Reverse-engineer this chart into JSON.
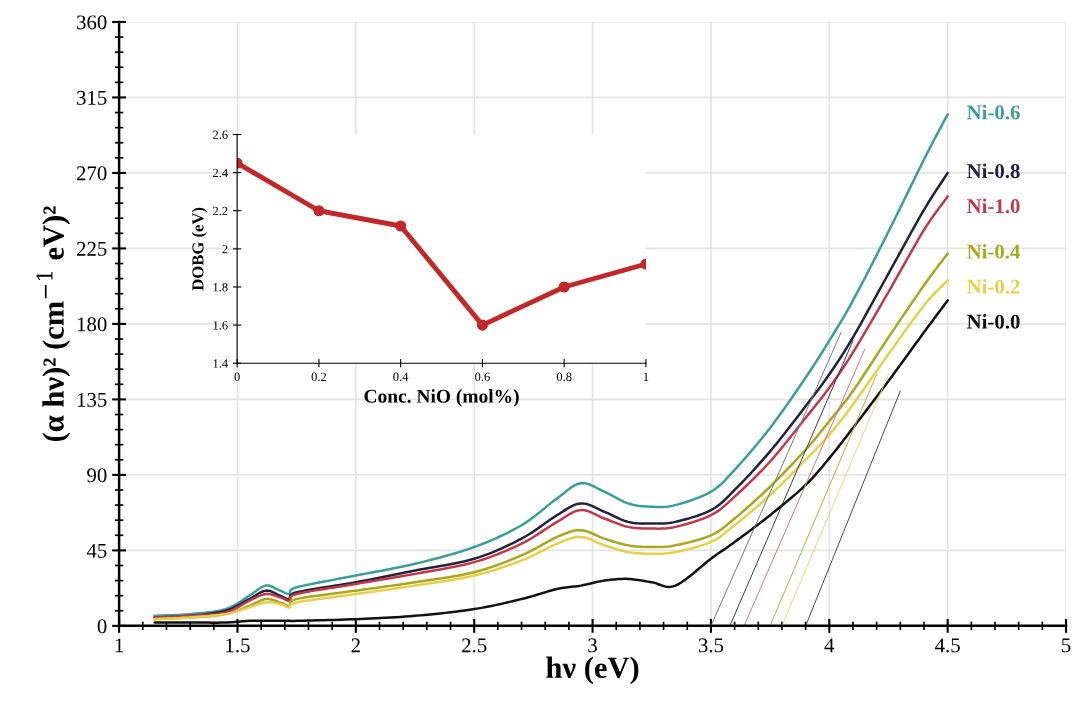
{
  "chart_data": [
    {
      "type": "line",
      "xlabel": "hν (eV)",
      "ylabel": "(α hν)² (cm$^{−1}$ eV)²",
      "xlim": [
        1,
        5
      ],
      "xticks": [
        1,
        1.5,
        2,
        2.5,
        3,
        3.5,
        4,
        4.5,
        5
      ],
      "ylim": [
        0,
        360
      ],
      "yticks": [
        0,
        45,
        90,
        135,
        180,
        225,
        270,
        315,
        360
      ],
      "grid": true,
      "legend": false,
      "marker": "none",
      "line_style": "solid",
      "x": [
        1.15,
        1.3,
        1.45,
        1.55,
        1.62,
        1.68,
        1.72,
        1.75,
        2.0,
        2.25,
        2.5,
        2.7,
        2.85,
        2.95,
        3.05,
        3.15,
        3.25,
        3.35,
        3.5,
        3.6,
        3.75,
        3.9,
        4.0,
        4.1,
        4.25,
        4.4,
        4.5
      ],
      "series": [
        {
          "name": "Ni-0.6",
          "color": "#3a9e9a",
          "values": [
            6,
            7,
            10,
            18,
            24,
            21,
            19,
            23,
            30,
            37,
            47,
            60,
            76,
            85,
            80,
            73,
            71,
            72,
            80,
            93,
            118,
            148,
            170,
            194,
            235,
            278,
            305
          ]
        },
        {
          "name": "Ni-0.8",
          "color": "#22223f",
          "values": [
            5,
            6,
            9,
            16,
            21,
            18,
            16,
            20,
            26,
            33,
            40,
            52,
            66,
            73,
            68,
            62,
            61,
            62,
            69,
            81,
            104,
            131,
            150,
            172,
            210,
            248,
            270
          ]
        },
        {
          "name": "Ni-1.0",
          "color": "#c0394b",
          "values": [
            5,
            6,
            8,
            15,
            19,
            17,
            15,
            19,
            25,
            31,
            38,
            49,
            62,
            69,
            64,
            59,
            58,
            59,
            66,
            77,
            98,
            124,
            142,
            163,
            199,
            236,
            256
          ]
        },
        {
          "name": "Ni-0.4",
          "color": "#a8a820",
          "values": [
            4,
            5,
            7,
            12,
            16,
            14,
            12,
            16,
            21,
            26,
            32,
            42,
            53,
            57,
            52,
            48,
            47,
            48,
            54,
            64,
            83,
            105,
            122,
            140,
            172,
            203,
            222
          ]
        },
        {
          "name": "Ni-0.2",
          "color": "#e8cf4a",
          "values": [
            4,
            5,
            7,
            11,
            14,
            13,
            11,
            14,
            19,
            24,
            30,
            39,
            49,
            53,
            48,
            44,
            43,
            44,
            50,
            60,
            78,
            99,
            114,
            132,
            162,
            191,
            206
          ]
        },
        {
          "name": "Ni-0.0",
          "color": "#111111",
          "values": [
            2,
            2,
            2,
            3,
            3,
            3,
            3,
            3,
            4,
            6,
            10,
            16,
            22,
            24,
            27,
            28,
            26,
            24,
            40,
            50,
            66,
            84,
            100,
            118,
            146,
            175,
            194
          ]
        },
        {
          "type": "line",
          "color": "#777777",
          "x": [
            3.5,
            4.05
          ],
          "values": [
            0,
            175
          ]
        },
        {
          "type": "line",
          "color": "#333344",
          "x": [
            3.58,
            4.1
          ],
          "values": [
            0,
            170
          ]
        },
        {
          "type": "line",
          "color": "#d07080",
          "x": [
            3.64,
            4.15
          ],
          "values": [
            0,
            165
          ]
        },
        {
          "type": "line",
          "color": "#b0b040",
          "x": [
            3.75,
            4.2
          ],
          "values": [
            0,
            150
          ]
        },
        {
          "type": "line",
          "color": "#e8d870",
          "x": [
            3.8,
            4.25
          ],
          "values": [
            0,
            150
          ]
        },
        {
          "type": "line",
          "color": "#444444",
          "x": [
            3.9,
            4.3
          ],
          "values": [
            0,
            140
          ]
        }
      ]
    },
    {
      "type": "line",
      "xlabel": "Conc. NiO (mol%)",
      "ylabel": "DOBG (eV)",
      "xlim": [
        0,
        1
      ],
      "xticks": [
        0,
        0.2,
        0.4,
        0.6,
        0.8,
        1
      ],
      "ylim": [
        1.4,
        2.6
      ],
      "yticks": [
        1.4,
        1.6,
        1.8,
        2,
        2.2,
        2.4,
        2.6
      ],
      "marker": "circle",
      "line_style": "solid",
      "x": [
        0,
        0.2,
        0.4,
        0.6,
        0.8,
        1
      ],
      "series": [
        {
          "color": "#c0282a",
          "values": [
            2.45,
            2.2,
            2.12,
            1.6,
            1.8,
            1.92
          ]
        }
      ]
    }
  ]
}
